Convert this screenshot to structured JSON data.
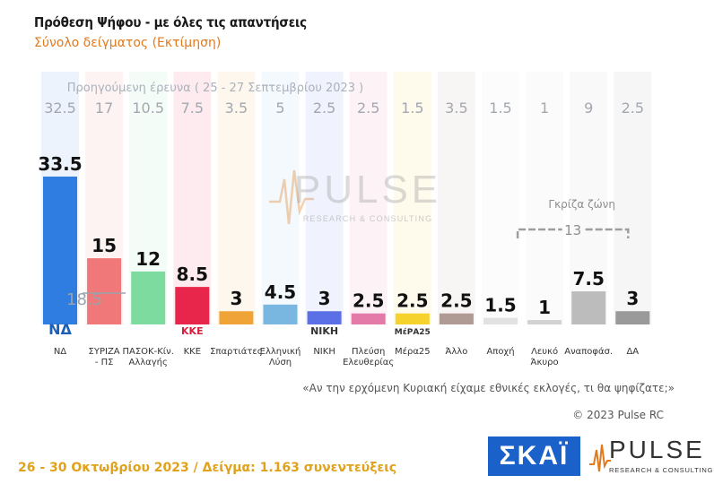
{
  "header": {
    "title": "Πρόθεση Ψήφου - με όλες τις απαντήσεις",
    "subtitle": "Σύνολο δείγματος   (Εκτίμηση)"
  },
  "chart_data": {
    "type": "bar",
    "previous_survey_label": "Προηγούμενη έρευνα  ( 25 - 27 Σεπτεμβρίου 2023 )",
    "categories": [
      "ΝΔ",
      "ΣΥΡΙΖΑ - ΠΣ",
      "ΠΑΣΟΚ-Κίν. Αλλαγής",
      "ΚΚΕ",
      "Σπαρτιάτες",
      "Ελληνική Λύση",
      "ΝΙΚΗ",
      "Πλεύση Ελευθερίας",
      "Μέρα25",
      "Άλλο",
      "Αποχή",
      "Λευκό Άκυρο",
      "Αναποφάσ.",
      "ΔΑ"
    ],
    "category_lines": [
      [
        "ΝΔ"
      ],
      [
        "ΣΥΡΙΖΑ",
        "- ΠΣ"
      ],
      [
        "ΠΑΣΟΚ-Κίν.",
        "Αλλαγής"
      ],
      [
        "ΚΚΕ"
      ],
      [
        "Σπαρτιάτες"
      ],
      [
        "Ελληνική",
        "Λύση"
      ],
      [
        "ΝΙΚΗ"
      ],
      [
        "Πλεύση",
        "Ελευθερίας"
      ],
      [
        "Μέρα25"
      ],
      [
        "Άλλο"
      ],
      [
        "Αποχή"
      ],
      [
        "Λευκό",
        "Άκυρο"
      ],
      [
        "Αναποφάσ."
      ],
      [
        "ΔΑ"
      ]
    ],
    "values": [
      33.5,
      15,
      12,
      8.5,
      3,
      4.5,
      3,
      2.5,
      2.5,
      2.5,
      1.5,
      1,
      7.5,
      3
    ],
    "value_labels": [
      "33.5",
      "15",
      "12",
      "8.5",
      "3",
      "4.5",
      "3",
      "2.5",
      "2.5",
      "2.5",
      "1.5",
      "1",
      "7.5",
      "3"
    ],
    "previous_values": [
      "32.5",
      "17",
      "10.5",
      "7.5",
      "3.5",
      "5",
      "2.5",
      "2.5",
      "1.5",
      "3.5",
      "1.5",
      "1",
      "9",
      "2.5"
    ],
    "colors": [
      "#2f7de1",
      "#f07878",
      "#7ddba0",
      "#e8254a",
      "#f0a438",
      "#7ab7e0",
      "#5b6fe6",
      "#e47aa8",
      "#f5d22c",
      "#b09a94",
      "#e2e2e2",
      "#d2d2d2",
      "#bcbcbc",
      "#9a9a9a"
    ],
    "ylim": [
      0,
      36
    ],
    "annotations": {
      "syriza_marker": "18.5",
      "grey_zone_label": "Γκρίζα ζώνη",
      "grey_zone_total": "13"
    },
    "party_logos": [
      "ΝΔ",
      "",
      "",
      "ΚΚΕ",
      "",
      "",
      "ΝΙΚΗ",
      "",
      "ΜέΡΑ25",
      "",
      "",
      "",
      "",
      ""
    ]
  },
  "watermark": {
    "word": "PULSE",
    "sub": "RESEARCH & CONSULTING"
  },
  "question": "«Αν την ερχόμενη Κυριακή είχαμε εθνικές εκλογές, τι θα ψηφίζατε;»",
  "copyright": "© 2023 Pulse RC",
  "footer": "26 - 30  Οκτωβρίου  2023  /  Δείγμα:  1.163 συνεντεύξεις",
  "logos": {
    "skai": "ΣΚΑΪ",
    "pulse": "PULSE",
    "pulse_sub": "RESEARCH & CONSULTING"
  }
}
